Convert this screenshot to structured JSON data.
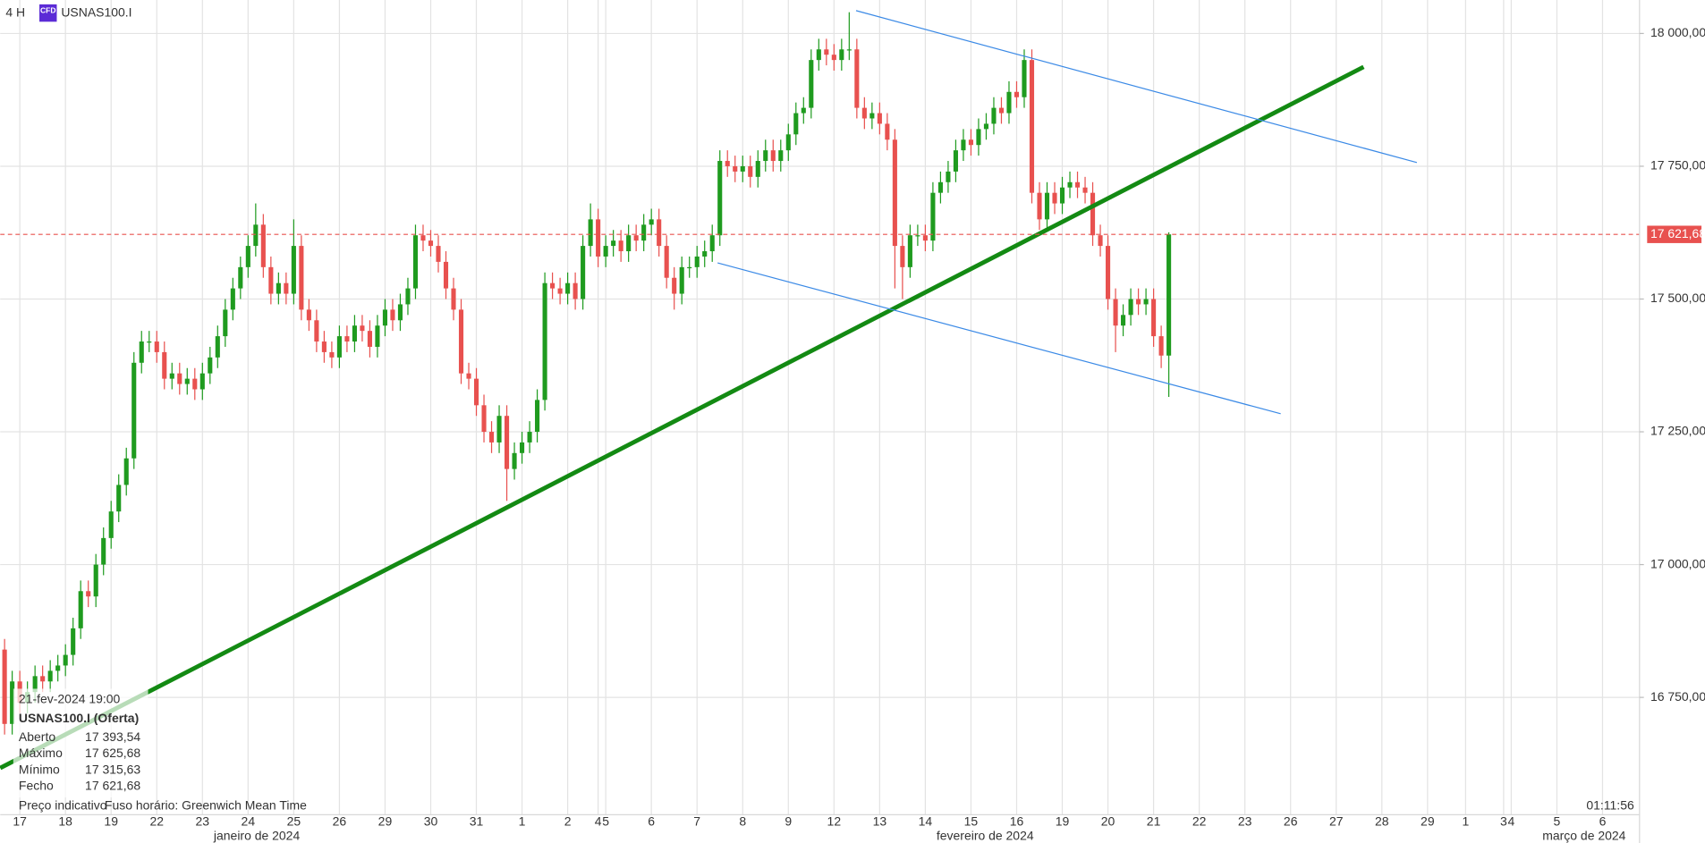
{
  "header": {
    "interval": "4 H",
    "badge": "CFD",
    "symbol": "USNAS100.I"
  },
  "chart_data": {
    "type": "candlestick",
    "open": [
      16840,
      16700,
      16780,
      16740,
      16760,
      16790,
      16780,
      16800,
      16810,
      16830,
      16880,
      16950,
      16940,
      17000,
      17050,
      17100,
      17150,
      17200,
      17380,
      17420,
      17420,
      17400,
      17350,
      17360,
      17340,
      17350,
      17330,
      17360,
      17390,
      17430,
      17480,
      17520,
      17560,
      17600,
      17640,
      17560,
      17510,
      17530,
      17510,
      17600,
      17480,
      17460,
      17420,
      17400,
      17390,
      17430,
      17420,
      17450,
      17440,
      17410,
      17450,
      17480,
      17460,
      17490,
      17520,
      17620,
      17610,
      17600,
      17570,
      17520,
      17480,
      17360,
      17350,
      17300,
      17250,
      17230,
      17280,
      17180,
      17210,
      17230,
      17250,
      17310,
      17530,
      17520,
      17510,
      17530,
      17500,
      17600,
      17650,
      17580,
      17600,
      17610,
      17590,
      17620,
      17610,
      17640,
      17650,
      17600,
      17540,
      17510,
      17560,
      17560,
      17580,
      17590,
      17620,
      17760,
      17750,
      17740,
      17750,
      17730,
      17760,
      17780,
      17760,
      17780,
      17810,
      17850,
      17860,
      17950,
      17970,
      17960,
      17950,
      17970,
      17970,
      17860,
      17840,
      17850,
      17830,
      17800,
      17600,
      17560,
      17620,
      17620,
      17610,
      17700,
      17720,
      17740,
      17780,
      17800,
      17790,
      17820,
      17830,
      17860,
      17850,
      17890,
      17880,
      17950,
      17700,
      17650,
      17700,
      17680,
      17710,
      17720,
      17710,
      17700,
      17620,
      17600,
      17500,
      17450,
      17470,
      17500,
      17490,
      17500,
      17430,
      17393.54
    ],
    "high": [
      16860,
      16800,
      16800,
      16780,
      16810,
      16810,
      16820,
      16830,
      16850,
      16900,
      16970,
      16970,
      17020,
      17070,
      17120,
      17170,
      17220,
      17400,
      17440,
      17440,
      17440,
      17420,
      17380,
      17380,
      17370,
      17370,
      17380,
      17410,
      17450,
      17500,
      17540,
      17580,
      17620,
      17680,
      17660,
      17580,
      17550,
      17550,
      17650,
      17620,
      17500,
      17480,
      17440,
      17420,
      17450,
      17450,
      17470,
      17470,
      17460,
      17470,
      17500,
      17500,
      17510,
      17540,
      17640,
      17640,
      17630,
      17620,
      17590,
      17540,
      17500,
      17380,
      17370,
      17320,
      17270,
      17300,
      17300,
      17230,
      17250,
      17270,
      17330,
      17550,
      17550,
      17540,
      17550,
      17550,
      17620,
      17680,
      17670,
      17620,
      17630,
      17630,
      17640,
      17640,
      17660,
      17670,
      17670,
      17620,
      17560,
      17580,
      17580,
      17600,
      17610,
      17640,
      17780,
      17780,
      17770,
      17770,
      17770,
      17780,
      17800,
      17800,
      17800,
      17830,
      17870,
      17880,
      17970,
      17990,
      17990,
      17980,
      17990,
      18040,
      17990,
      17880,
      17870,
      17870,
      17850,
      17820,
      17620,
      17640,
      17640,
      17640,
      17720,
      17740,
      17760,
      17800,
      17820,
      17820,
      17840,
      17850,
      17880,
      17880,
      17910,
      17910,
      17970,
      17970,
      17720,
      17720,
      17720,
      17730,
      17740,
      17740,
      17730,
      17720,
      17640,
      17620,
      17520,
      17490,
      17520,
      17520,
      17520,
      17520,
      17450,
      17625.68
    ],
    "low": [
      16680,
      16680,
      16720,
      16720,
      16740,
      16760,
      16760,
      16780,
      16790,
      16810,
      16860,
      16920,
      16920,
      16980,
      17030,
      17080,
      17130,
      17180,
      17360,
      17400,
      17380,
      17330,
      17330,
      17320,
      17320,
      17310,
      17310,
      17340,
      17370,
      17410,
      17460,
      17500,
      17540,
      17580,
      17540,
      17490,
      17490,
      17490,
      17490,
      17460,
      17440,
      17400,
      17380,
      17370,
      17370,
      17400,
      17400,
      17420,
      17390,
      17390,
      17430,
      17440,
      17440,
      17470,
      17500,
      17590,
      17580,
      17550,
      17500,
      17460,
      17340,
      17330,
      17280,
      17230,
      17210,
      17210,
      17120,
      17160,
      17190,
      17210,
      17230,
      17290,
      17500,
      17490,
      17490,
      17480,
      17480,
      17580,
      17560,
      17560,
      17580,
      17570,
      17570,
      17590,
      17590,
      17620,
      17580,
      17520,
      17480,
      17490,
      17540,
      17540,
      17560,
      17570,
      17600,
      17730,
      17720,
      17720,
      17710,
      17710,
      17740,
      17740,
      17740,
      17760,
      17790,
      17830,
      17840,
      17930,
      17940,
      17930,
      17930,
      17950,
      17840,
      17820,
      17820,
      17810,
      17780,
      17520,
      17500,
      17540,
      17600,
      17590,
      17590,
      17680,
      17700,
      17720,
      17760,
      17770,
      17770,
      17800,
      17810,
      17830,
      17830,
      17860,
      17860,
      17680,
      17630,
      17630,
      17660,
      17660,
      17690,
      17690,
      17680,
      17600,
      17580,
      17480,
      17400,
      17430,
      17450,
      17470,
      17470,
      17410,
      17370,
      17315.63
    ],
    "close": [
      16700,
      16780,
      16740,
      16760,
      16790,
      16780,
      16800,
      16810,
      16830,
      16880,
      16950,
      16940,
      17000,
      17050,
      17100,
      17150,
      17200,
      17380,
      17420,
      17420,
      17400,
      17350,
      17360,
      17340,
      17350,
      17330,
      17360,
      17390,
      17430,
      17480,
      17520,
      17560,
      17600,
      17640,
      17560,
      17510,
      17530,
      17510,
      17600,
      17480,
      17460,
      17420,
      17400,
      17390,
      17430,
      17420,
      17450,
      17440,
      17410,
      17450,
      17480,
      17460,
      17490,
      17520,
      17620,
      17610,
      17600,
      17570,
      17520,
      17480,
      17360,
      17350,
      17300,
      17250,
      17230,
      17280,
      17180,
      17210,
      17230,
      17250,
      17310,
      17530,
      17520,
      17510,
      17530,
      17500,
      17600,
      17650,
      17580,
      17600,
      17610,
      17590,
      17620,
      17610,
      17640,
      17650,
      17600,
      17540,
      17510,
      17560,
      17560,
      17580,
      17590,
      17620,
      17760,
      17750,
      17740,
      17750,
      17730,
      17760,
      17780,
      17760,
      17780,
      17810,
      17850,
      17860,
      17950,
      17970,
      17960,
      17950,
      17970,
      17970,
      17860,
      17840,
      17850,
      17830,
      17800,
      17600,
      17560,
      17620,
      17620,
      17610,
      17700,
      17720,
      17740,
      17780,
      17800,
      17790,
      17820,
      17830,
      17860,
      17850,
      17890,
      17880,
      17950,
      17700,
      17650,
      17700,
      17680,
      17710,
      17720,
      17710,
      17700,
      17620,
      17600,
      17500,
      17450,
      17470,
      17500,
      17490,
      17500,
      17430,
      17393.54,
      17621.68
    ],
    "up_color": "#1f9b1f",
    "down_color": "#e8514f",
    "ylim": [
      16529,
      18063
    ],
    "yticks": [
      {
        "value": 16750,
        "label": "16 750,00"
      },
      {
        "value": 17000,
        "label": "17 000,00"
      },
      {
        "value": 17250,
        "label": "17 250,00"
      },
      {
        "value": 17500,
        "label": "17 500,00"
      },
      {
        "value": 17750,
        "label": "17 750,00"
      },
      {
        "value": 18000,
        "label": "18 000,00"
      }
    ],
    "xlim": [
      -0.57,
      214.86
    ],
    "xticks": [
      {
        "value": 2,
        "label": "17"
      },
      {
        "value": 8,
        "label": "18"
      },
      {
        "value": 14,
        "label": "19"
      },
      {
        "value": 20,
        "label": "22"
      },
      {
        "value": 26,
        "label": "23"
      },
      {
        "value": 32,
        "label": "24"
      },
      {
        "value": 38,
        "label": "25"
      },
      {
        "value": 44,
        "label": "26"
      },
      {
        "value": 50,
        "label": "29"
      },
      {
        "value": 56,
        "label": "30"
      },
      {
        "value": 62,
        "label": "31"
      },
      {
        "value": 68,
        "label": "1"
      },
      {
        "value": 74,
        "label": "2"
      },
      {
        "value": 78,
        "label": "4"
      },
      {
        "value": 79,
        "label": "5"
      },
      {
        "value": 85,
        "label": "6"
      },
      {
        "value": 91,
        "label": "7"
      },
      {
        "value": 97,
        "label": "8"
      },
      {
        "value": 103,
        "label": "9"
      },
      {
        "value": 109,
        "label": "12"
      },
      {
        "value": 115,
        "label": "13"
      },
      {
        "value": 121,
        "label": "14"
      },
      {
        "value": 127,
        "label": "15"
      },
      {
        "value": 133,
        "label": "16"
      },
      {
        "value": 139,
        "label": "19"
      },
      {
        "value": 145,
        "label": "20"
      },
      {
        "value": 151,
        "label": "21"
      },
      {
        "value": 157,
        "label": "22"
      },
      {
        "value": 163,
        "label": "23"
      },
      {
        "value": 169,
        "label": "26"
      },
      {
        "value": 175,
        "label": "27"
      },
      {
        "value": 181,
        "label": "28"
      },
      {
        "value": 187,
        "label": "29"
      },
      {
        "value": 192,
        "label": "1"
      },
      {
        "value": 197,
        "label": "3"
      },
      {
        "value": 198,
        "label": "4"
      },
      {
        "value": 204,
        "label": "5"
      },
      {
        "value": 210,
        "label": "6"
      }
    ],
    "month_labels": [
      "janeiro de 2024",
      "fevereiro de 2024",
      "março de 2024"
    ],
    "grid": true,
    "current_price": {
      "value": 17621.68,
      "label": "17 621,68",
      "color": "#e8514f"
    },
    "trend_lines": [
      {
        "color": "#138a13",
        "width": 4,
        "x": [
          -0.57,
          178.6
        ],
        "y": [
          16617,
          17937
        ]
      },
      {
        "color": "#3b8ae6",
        "width": 1,
        "x": [
          111.9,
          185.6
        ],
        "y": [
          18043,
          17757
        ]
      },
      {
        "color": "#3b8ae6",
        "width": 1,
        "x": [
          93.7,
          167.7
        ],
        "y": [
          17568,
          17284
        ]
      }
    ]
  },
  "info_box": {
    "datetime": "21-fev-2024 19:00",
    "title": "USNAS100.I (Oferta)",
    "rows": [
      [
        "Aberto",
        "17 393,54"
      ],
      [
        "Máximo",
        "17 625,68"
      ],
      [
        "Mínimo",
        "17 315,63"
      ],
      [
        "Fecho",
        "17 621,68"
      ]
    ]
  },
  "footer": {
    "note": "Preço indicativo",
    "timezone": "Fuso horário: Greenwich Mean Time",
    "clock": "01:11:56"
  }
}
